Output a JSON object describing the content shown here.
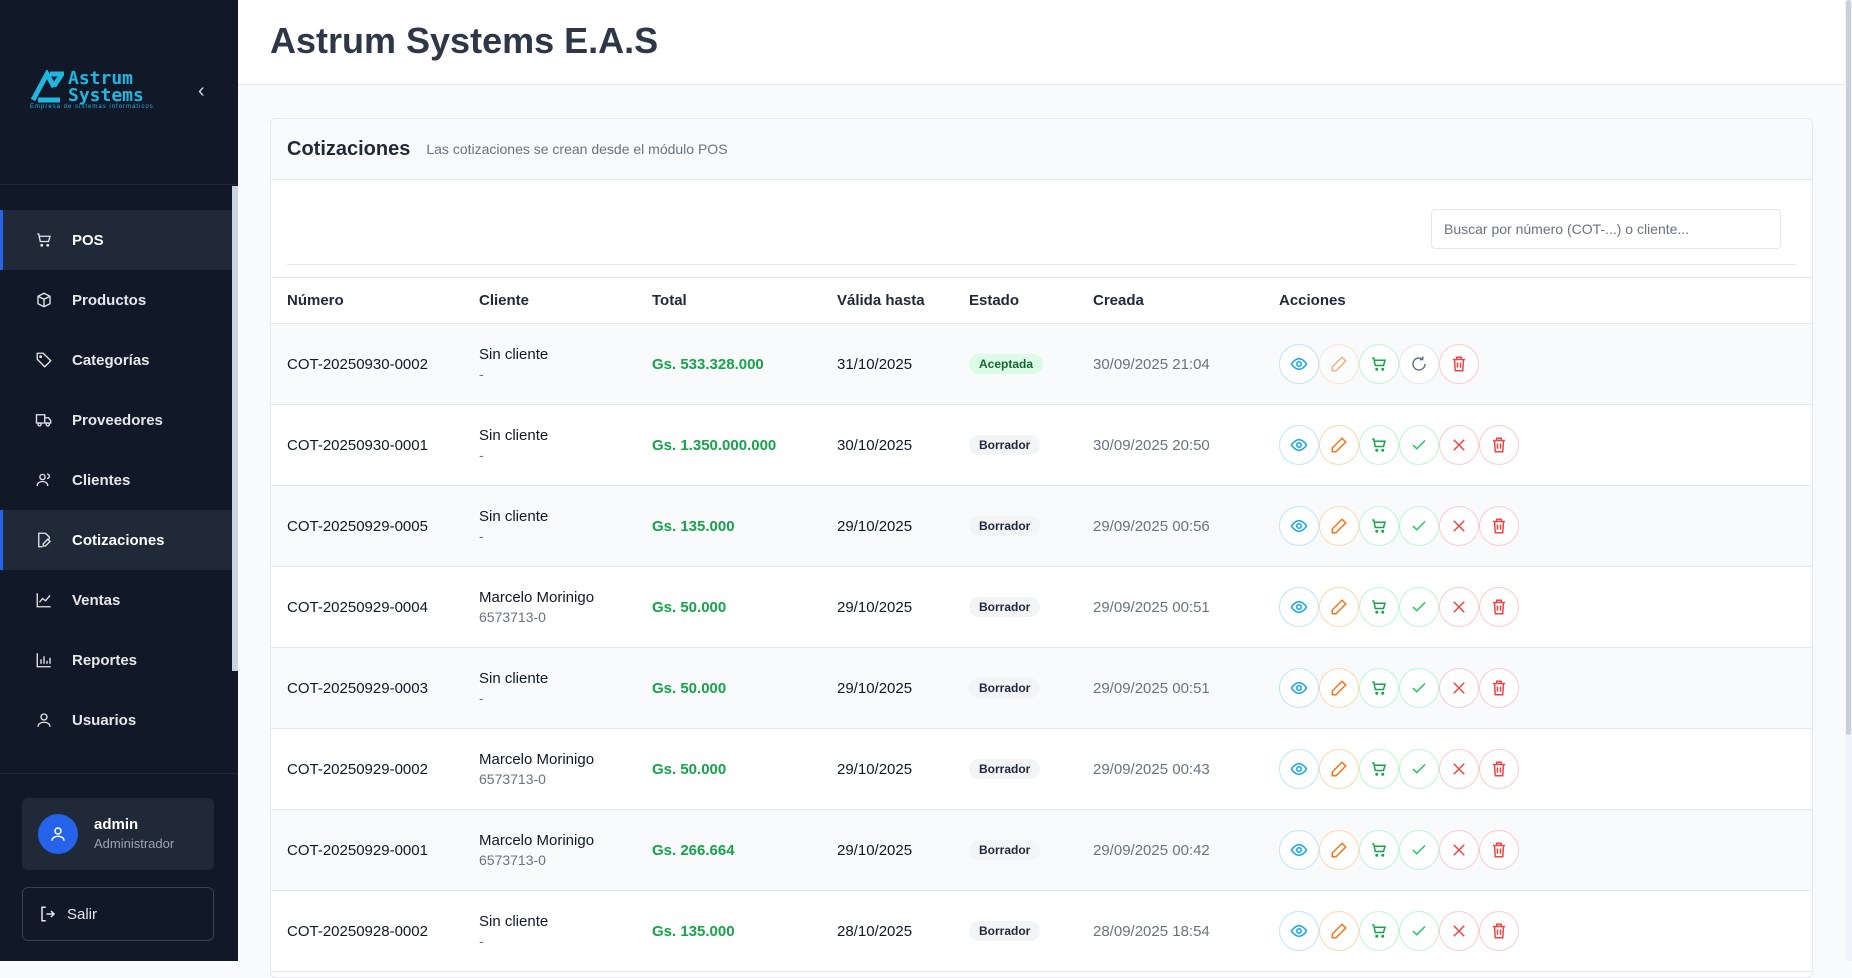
{
  "brand": {
    "line1": "Astrum",
    "line2": "Systems",
    "tagline": "Empresa de sistemas informáticos",
    "color": "#1fb6e0"
  },
  "sidebar": {
    "items": [
      {
        "label": "POS",
        "icon": "cart"
      },
      {
        "label": "Productos",
        "icon": "box"
      },
      {
        "label": "Categorías",
        "icon": "tag"
      },
      {
        "label": "Proveedores",
        "icon": "truck"
      },
      {
        "label": "Clientes",
        "icon": "users"
      },
      {
        "label": "Cotizaciones",
        "icon": "file-edit"
      },
      {
        "label": "Ventas",
        "icon": "chart-line"
      },
      {
        "label": "Reportes",
        "icon": "chart-bar"
      },
      {
        "label": "Usuarios",
        "icon": "user"
      }
    ],
    "user": {
      "name": "admin",
      "role": "Administrador"
    },
    "logout": "Salir"
  },
  "header": {
    "title": "Astrum Systems E.A.S"
  },
  "card": {
    "title": "Cotizaciones",
    "subtitle": "Las cotizaciones se crean desde el módulo POS",
    "search_placeholder": "Buscar por número (COT-...) o cliente..."
  },
  "table": {
    "columns": [
      "Número",
      "Cliente",
      "Total",
      "Válida hasta",
      "Estado",
      "Creada",
      "Acciones"
    ],
    "rows": [
      {
        "numero": "COT-20250930-0002",
        "cliente": "Sin cliente",
        "doc": "-",
        "total": "Gs. 533.328.000",
        "valida": "31/10/2025",
        "estado": "Aceptada",
        "creada": "30/09/2025 21:04"
      },
      {
        "numero": "COT-20250930-0001",
        "cliente": "Sin cliente",
        "doc": "-",
        "total": "Gs. 1.350.000.000",
        "valida": "30/10/2025",
        "estado": "Borrador",
        "creada": "30/09/2025 20:50"
      },
      {
        "numero": "COT-20250929-0005",
        "cliente": "Sin cliente",
        "doc": "-",
        "total": "Gs. 135.000",
        "valida": "29/10/2025",
        "estado": "Borrador",
        "creada": "29/09/2025 00:56"
      },
      {
        "numero": "COT-20250929-0004",
        "cliente": "Marcelo Morinigo",
        "doc": "6573713-0",
        "total": "Gs. 50.000",
        "valida": "29/10/2025",
        "estado": "Borrador",
        "creada": "29/09/2025 00:51"
      },
      {
        "numero": "COT-20250929-0003",
        "cliente": "Sin cliente",
        "doc": "-",
        "total": "Gs. 50.000",
        "valida": "29/10/2025",
        "estado": "Borrador",
        "creada": "29/09/2025 00:51"
      },
      {
        "numero": "COT-20250929-0002",
        "cliente": "Marcelo Morinigo",
        "doc": "6573713-0",
        "total": "Gs. 50.000",
        "valida": "29/10/2025",
        "estado": "Borrador",
        "creada": "29/09/2025 00:43"
      },
      {
        "numero": "COT-20250929-0001",
        "cliente": "Marcelo Morinigo",
        "doc": "6573713-0",
        "total": "Gs. 266.664",
        "valida": "29/10/2025",
        "estado": "Borrador",
        "creada": "29/09/2025 00:42"
      },
      {
        "numero": "COT-20250928-0002",
        "cliente": "Sin cliente",
        "doc": "-",
        "total": "Gs. 135.000",
        "valida": "28/10/2025",
        "estado": "Borrador",
        "creada": "28/09/2025 18:54"
      }
    ]
  }
}
